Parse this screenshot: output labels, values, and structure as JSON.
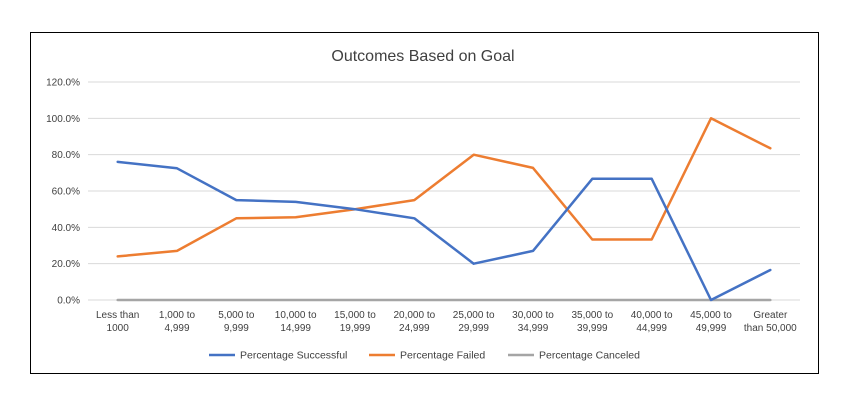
{
  "chart_data": {
    "type": "line",
    "title": "Outcomes Based on Goal",
    "xlabel": "",
    "ylabel": "",
    "ylim": [
      0,
      120
    ],
    "yticks": [
      "0.0%",
      "20.0%",
      "40.0%",
      "60.0%",
      "80.0%",
      "100.0%",
      "120.0%"
    ],
    "categories": [
      [
        "Less than",
        "1000"
      ],
      [
        "1,000 to",
        "4,999"
      ],
      [
        "5,000 to",
        "9,999"
      ],
      [
        "10,000 to",
        "14,999"
      ],
      [
        "15,000 to",
        "19,999"
      ],
      [
        "20,000 to",
        "24,999"
      ],
      [
        "25,000 to",
        "29,999"
      ],
      [
        "30,000 to",
        "34,999"
      ],
      [
        "35,000 to",
        "39,999"
      ],
      [
        "40,000 to",
        "44,999"
      ],
      [
        "45,000 to",
        "49,999"
      ],
      [
        "Greater",
        "than 50,000"
      ]
    ],
    "grid": true,
    "legend_position": "bottom",
    "series": [
      {
        "name": "Percentage Successful",
        "color": "#4472C4",
        "values": [
          76,
          72.5,
          55,
          54,
          50,
          45,
          20,
          27,
          66.7,
          66.7,
          0,
          16.5
        ]
      },
      {
        "name": "Percentage Failed",
        "color": "#ED7D31",
        "values": [
          24,
          27,
          45,
          45.5,
          50,
          55,
          80,
          72.7,
          33.3,
          33.3,
          100,
          83.5
        ]
      },
      {
        "name": "Percentage Canceled",
        "color": "#A5A5A5",
        "values": [
          0,
          0,
          0,
          0,
          0,
          0,
          0,
          0,
          0,
          0,
          0,
          0
        ]
      }
    ]
  }
}
